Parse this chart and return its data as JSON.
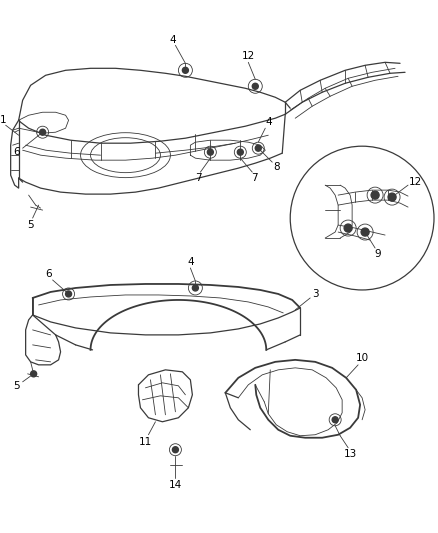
{
  "background_color": "#ffffff",
  "line_color": "#3a3a3a",
  "label_color": "#000000",
  "label_fontsize": 7.5,
  "fig_width": 4.38,
  "fig_height": 5.33,
  "dpi": 100
}
